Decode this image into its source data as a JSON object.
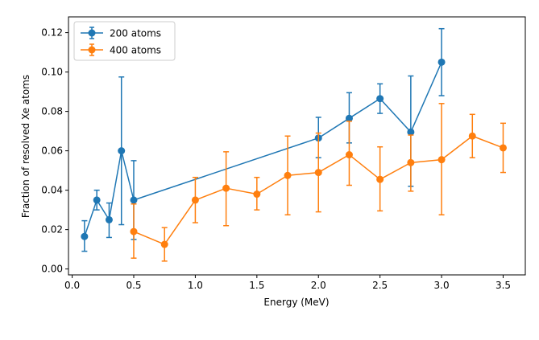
{
  "chart_data": {
    "type": "line",
    "title": "",
    "xlabel": "Energy (MeV)",
    "ylabel": "Fraction of resolved Xe atoms",
    "xlim": [
      -0.03,
      3.68
    ],
    "ylim": [
      -0.003,
      0.128
    ],
    "x_ticks": [
      0.0,
      0.5,
      1.0,
      1.5,
      2.0,
      2.5,
      3.0,
      3.5
    ],
    "x_tick_labels": [
      "0.0",
      "0.5",
      "1.0",
      "1.5",
      "2.0",
      "2.5",
      "3.0",
      "3.5"
    ],
    "y_ticks": [
      0.0,
      0.02,
      0.04,
      0.06,
      0.08,
      0.1,
      0.12
    ],
    "y_tick_labels": [
      "0.00",
      "0.02",
      "0.04",
      "0.06",
      "0.08",
      "0.10",
      "0.12"
    ],
    "grid": false,
    "legend_position": "top-left",
    "series": [
      {
        "name": "200 atoms",
        "color": "#1f77b4",
        "x": [
          0.1,
          0.2,
          0.3,
          0.4,
          0.5,
          2.0,
          2.25,
          2.5,
          2.75,
          3.0
        ],
        "y": [
          0.0165,
          0.035,
          0.025,
          0.06,
          0.035,
          0.0665,
          0.0765,
          0.0865,
          0.0695,
          0.105
        ],
        "err_low": [
          0.009,
          0.03,
          0.016,
          0.0225,
          0.015,
          0.0565,
          0.064,
          0.079,
          0.042,
          0.088
        ],
        "err_high": [
          0.0245,
          0.04,
          0.0335,
          0.0975,
          0.055,
          0.077,
          0.0895,
          0.094,
          0.098,
          0.122
        ]
      },
      {
        "name": "400 atoms",
        "color": "#ff7f0e",
        "x": [
          0.5,
          0.75,
          1.0,
          1.25,
          1.5,
          1.75,
          2.0,
          2.25,
          2.5,
          2.75,
          3.0,
          3.25,
          3.5
        ],
        "y": [
          0.019,
          0.0125,
          0.035,
          0.041,
          0.038,
          0.0475,
          0.049,
          0.058,
          0.0455,
          0.054,
          0.0555,
          0.0675,
          0.0615
        ],
        "err_low": [
          0.0055,
          0.004,
          0.0235,
          0.022,
          0.03,
          0.0275,
          0.029,
          0.0425,
          0.0295,
          0.0395,
          0.0275,
          0.0565,
          0.049
        ],
        "err_high": [
          0.033,
          0.021,
          0.0465,
          0.0595,
          0.0465,
          0.0675,
          0.069,
          0.075,
          0.062,
          0.068,
          0.084,
          0.0785,
          0.074
        ]
      }
    ]
  }
}
